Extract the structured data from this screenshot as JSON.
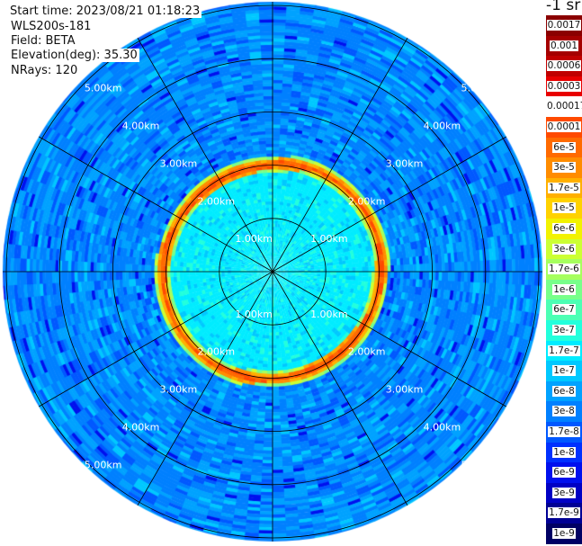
{
  "header": {
    "start_time": "Start time: 2023/08/21 01:18:23",
    "instrument": "WLS200s-181",
    "field": "Field: BETA",
    "elevation": "Elevation(deg): 35.30",
    "nrays": "NRays: 120"
  },
  "chart_data": {
    "type": "heatmap",
    "projection": "polar PPI",
    "range_rings": [
      "1.00km",
      "2.00km",
      "3.00km",
      "4.00km",
      "5.00km"
    ],
    "spoke_interval_deg": 30,
    "colorbar": {
      "unit_label": "-1 sr",
      "labels": [
        "0.0017",
        "0.001",
        "0.0006",
        "0.0003",
        "0.00017",
        "0.0001",
        "6e-5",
        "3e-5",
        "1.7e-5",
        "1e-5",
        "6e-6",
        "3e-6",
        "1.7e-6",
        "1e-6",
        "6e-7",
        "3e-7",
        "1.7e-7",
        "1e-7",
        "6e-8",
        "3e-8",
        "1.7e-8",
        "1e-8",
        "6e-9",
        "3e-9",
        "1.7e-9",
        "1e-9"
      ],
      "colors": [
        "#8b0000",
        "#a50000",
        "#c00000",
        "#e80000",
        "#ff2000",
        "#ff4a00",
        "#ff6a00",
        "#ff8c00",
        "#ffb000",
        "#ffd200",
        "#f2f200",
        "#ccff33",
        "#a6ff5e",
        "#78ff8a",
        "#4cffb4",
        "#22ffdc",
        "#00ecff",
        "#00c8ff",
        "#00a2ff",
        "#0080ff",
        "#0058ff",
        "#0030ff",
        "#0010ee",
        "#0000c4",
        "#000094",
        "#000064"
      ]
    },
    "features": {
      "inner_region_km": 2.0,
      "ring_peak_label": "0.0001"
    }
  }
}
